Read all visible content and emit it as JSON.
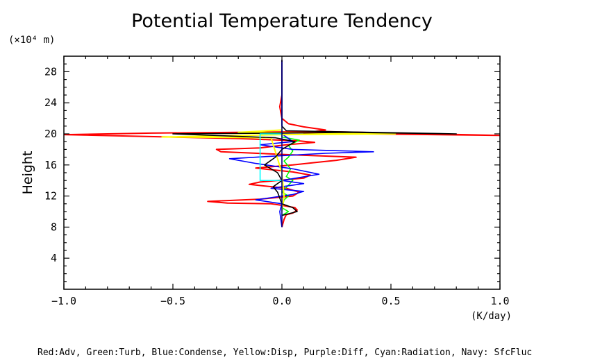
{
  "chart_data": {
    "type": "line",
    "title": "Potential Temperature Tendency",
    "ylabel": "Height",
    "yunit": "(×10⁴ m)",
    "xunit": "(K/day)",
    "xlabel": "",
    "footer": "Red:Adv, Green:Turb, Blue:Condense, Yellow:Disp, Purple:Diff, Cyan:Radiation, Navy: SfcFluc",
    "xlim": [
      -1.0,
      1.0
    ],
    "ylim": [
      0,
      30
    ],
    "xticks": [
      -1.0,
      -0.5,
      0.0,
      0.5,
      1.0
    ],
    "xtick_labels": [
      "−1.0",
      "−0.5",
      "0.0",
      "0.5",
      "1.0"
    ],
    "yticks": [
      4,
      8,
      12,
      16,
      20,
      24,
      28
    ],
    "ytick_labels": [
      "4",
      "8",
      "12",
      "16",
      "20",
      "24",
      "28"
    ],
    "grid": false,
    "series": [
      {
        "name": "Adv",
        "color": "#ff0000",
        "points": [
          [
            0.0,
            8.0
          ],
          [
            0.01,
            9.0
          ],
          [
            0.02,
            9.6
          ],
          [
            0.05,
            9.8
          ],
          [
            0.07,
            10.2
          ],
          [
            0.06,
            10.5
          ],
          [
            0.0,
            10.8
          ],
          [
            -0.05,
            11.0
          ],
          [
            -0.25,
            11.1
          ],
          [
            -0.34,
            11.3
          ],
          [
            -0.1,
            11.6
          ],
          [
            0.05,
            12.0
          ],
          [
            0.08,
            12.5
          ],
          [
            0.02,
            13.0
          ],
          [
            -0.15,
            13.5
          ],
          [
            -0.1,
            13.8
          ],
          [
            0.1,
            14.3
          ],
          [
            0.13,
            14.7
          ],
          [
            0.05,
            15.1
          ],
          [
            -0.12,
            15.6
          ],
          [
            0.05,
            16.0
          ],
          [
            0.15,
            16.3
          ],
          [
            0.25,
            16.6
          ],
          [
            0.34,
            17.0
          ],
          [
            0.05,
            17.3
          ],
          [
            -0.28,
            17.7
          ],
          [
            -0.3,
            18.0
          ],
          [
            -0.1,
            18.2
          ],
          [
            0.02,
            18.6
          ],
          [
            0.15,
            18.9
          ],
          [
            0.08,
            19.1
          ],
          [
            -0.2,
            19.4
          ],
          [
            -1.0,
            19.9
          ],
          [
            -0.6,
            20.1
          ],
          [
            0.2,
            20.3
          ],
          [
            0.5,
            20.1
          ],
          [
            1.0,
            19.8
          ],
          [
            0.1,
            20.1
          ],
          [
            0.2,
            20.5
          ],
          [
            0.1,
            20.9
          ],
          [
            0.03,
            21.3
          ],
          [
            0.0,
            22.0
          ],
          [
            -0.01,
            23.5
          ],
          [
            0.0,
            25.0
          ],
          [
            0.0,
            29.5
          ]
        ]
      },
      {
        "name": "Turb",
        "color": "#00ff00",
        "points": [
          [
            0.0,
            9.5
          ],
          [
            0.03,
            10.0
          ],
          [
            0.0,
            10.5
          ],
          [
            0.01,
            11.5
          ],
          [
            0.03,
            12.0
          ],
          [
            0.0,
            12.5
          ],
          [
            0.05,
            14.0
          ],
          [
            0.02,
            14.5
          ],
          [
            0.04,
            15.5
          ],
          [
            0.01,
            16.5
          ],
          [
            0.03,
            17.0
          ],
          [
            0.05,
            17.8
          ],
          [
            0.03,
            18.5
          ],
          [
            0.08,
            19.2
          ],
          [
            0.0,
            19.6
          ],
          [
            0.0,
            21.0
          ]
        ]
      },
      {
        "name": "Condense",
        "color": "#0000ff",
        "points": [
          [
            0.0,
            8.0
          ],
          [
            -0.01,
            10.0
          ],
          [
            0.0,
            11.0
          ],
          [
            -0.12,
            11.5
          ],
          [
            0.05,
            12.2
          ],
          [
            0.1,
            12.6
          ],
          [
            -0.05,
            13.0
          ],
          [
            0.1,
            13.6
          ],
          [
            0.0,
            14.0
          ],
          [
            0.17,
            14.8
          ],
          [
            0.05,
            15.5
          ],
          [
            -0.12,
            16.2
          ],
          [
            -0.24,
            16.8
          ],
          [
            0.0,
            17.2
          ],
          [
            0.2,
            17.5
          ],
          [
            0.42,
            17.7
          ],
          [
            0.05,
            18.0
          ],
          [
            -0.1,
            18.6
          ],
          [
            0.05,
            19.0
          ],
          [
            0.0,
            20.0
          ],
          [
            0.0,
            29.5
          ]
        ]
      },
      {
        "name": "Disp",
        "color": "#ffff00",
        "points": [
          [
            0.0,
            10.0
          ],
          [
            0.01,
            12.0
          ],
          [
            0.0,
            15.0
          ],
          [
            -0.05,
            19.5
          ],
          [
            -0.55,
            19.6
          ],
          [
            0.0,
            19.9
          ],
          [
            0.52,
            20.0
          ],
          [
            -0.2,
            20.2
          ],
          [
            0.0,
            20.5
          ],
          [
            0.0,
            21.0
          ]
        ]
      },
      {
        "name": "Diff",
        "color": "#000000",
        "points": [
          [
            0.0,
            9.5
          ],
          [
            0.07,
            10.0
          ],
          [
            0.05,
            10.5
          ],
          [
            0.0,
            11.0
          ],
          [
            -0.02,
            12.5
          ],
          [
            -0.04,
            13.2
          ],
          [
            0.0,
            14.0
          ],
          [
            -0.02,
            15.0
          ],
          [
            -0.08,
            16.0
          ],
          [
            -0.03,
            17.0
          ],
          [
            0.0,
            18.0
          ],
          [
            0.06,
            19.0
          ],
          [
            -0.03,
            19.5
          ],
          [
            -0.5,
            20.0
          ],
          [
            0.0,
            20.1
          ],
          [
            0.3,
            20.2
          ],
          [
            0.8,
            20.0
          ],
          [
            0.02,
            20.4
          ],
          [
            0.0,
            21.0
          ],
          [
            0.0,
            29.5
          ]
        ]
      },
      {
        "name": "Radiation",
        "color": "#00ffff",
        "points": [
          [
            0.0,
            14.0
          ],
          [
            -0.1,
            14.0
          ],
          [
            -0.1,
            20.0
          ],
          [
            0.0,
            20.0
          ]
        ]
      },
      {
        "name": "SfcFluc",
        "color": "#000080",
        "points": [
          [
            0.0,
            8.0
          ],
          [
            0.0,
            29.5
          ]
        ]
      }
    ]
  }
}
